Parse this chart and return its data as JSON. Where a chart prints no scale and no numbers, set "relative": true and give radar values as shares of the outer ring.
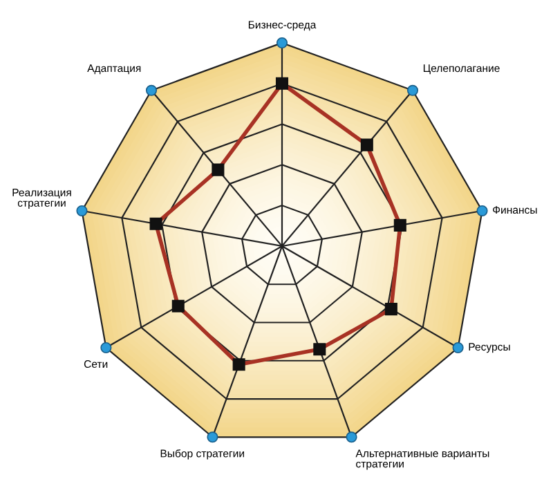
{
  "chart_data": {
    "type": "radar",
    "relative": true,
    "categories": [
      "Бизнес-среда",
      "Целеполагание",
      "Финансы",
      "Ресурсы",
      "Альтернативные варианты\nстратегии",
      "Выбор стратегии",
      "Сети",
      "Реализация\nстратегии",
      "Адаптация"
    ],
    "series": [
      {
        "color": "#a83224",
        "values": [
          0.8,
          0.65,
          0.59,
          0.62,
          0.54,
          0.62,
          0.59,
          0.63,
          0.49
        ]
      }
    ],
    "marker": "square",
    "grid": true
  }
}
